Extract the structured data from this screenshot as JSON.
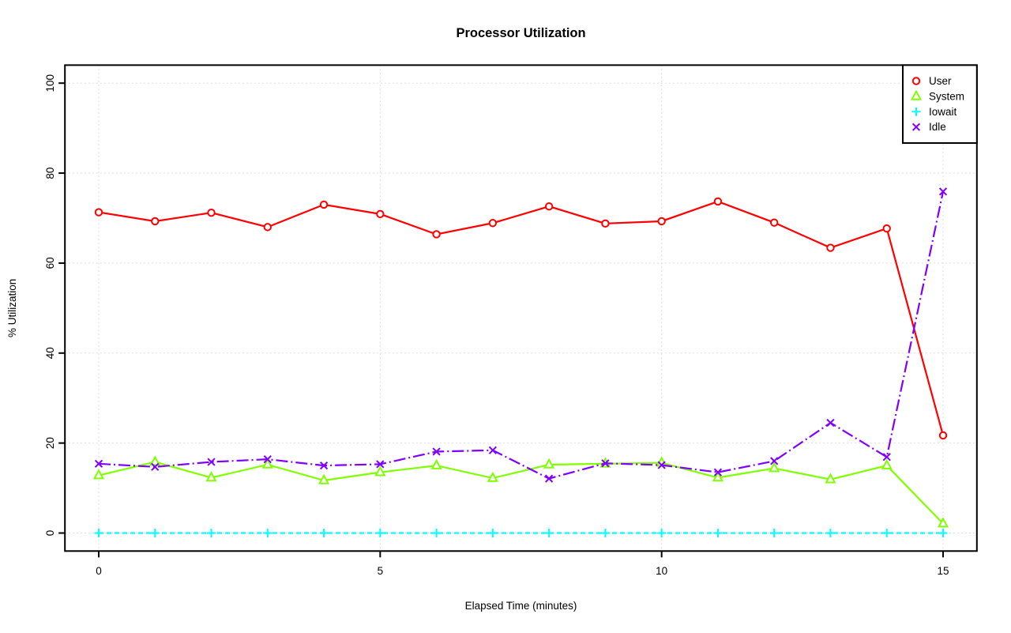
{
  "chart_data": {
    "type": "line",
    "title": "Processor Utilization",
    "xlabel": "Elapsed Time (minutes)",
    "ylabel": "% Utilization",
    "x": [
      0,
      1,
      2,
      3,
      4,
      5,
      6,
      7,
      8,
      9,
      10,
      11,
      12,
      13,
      14,
      15
    ],
    "x_ticks": [
      0,
      5,
      10,
      15
    ],
    "y_ticks": [
      0,
      20,
      40,
      60,
      80,
      100
    ],
    "xlim": [
      -0.6,
      15.6
    ],
    "ylim": [
      -4,
      104
    ],
    "grid": true,
    "grid_style": "dotted",
    "legend_position": "top-right",
    "legend_labels": [
      "User",
      "System",
      "Iowait",
      "Idle"
    ],
    "series": [
      {
        "name": "User",
        "color": "#FF0000",
        "marker": "circle",
        "line_style": "solid",
        "values": [
          71.3,
          69.3,
          71.2,
          68.0,
          73.0,
          70.9,
          66.4,
          68.9,
          72.6,
          68.8,
          69.3,
          73.7,
          69.0,
          63.4,
          67.7,
          21.7
        ]
      },
      {
        "name": "System",
        "color": "#80FF00",
        "marker": "triangle",
        "line_style": "solid",
        "values": [
          12.8,
          15.8,
          12.3,
          15.2,
          11.7,
          13.5,
          15.0,
          12.2,
          15.2,
          15.4,
          15.6,
          12.3,
          14.4,
          11.9,
          15.0,
          2.1
        ]
      },
      {
        "name": "Iowait",
        "color": "#00FFFF",
        "marker": "plus",
        "line_style": "dashed",
        "values": [
          0,
          0,
          0,
          0,
          0,
          0,
          0,
          0,
          0,
          0,
          0,
          0,
          0,
          0,
          0,
          0
        ]
      },
      {
        "name": "Idle",
        "color": "#8000FF",
        "marker": "x",
        "line_style": "dashdot",
        "values": [
          15.4,
          14.7,
          15.8,
          16.4,
          15.0,
          15.3,
          18.1,
          18.4,
          12.1,
          15.5,
          15.1,
          13.5,
          16.0,
          24.5,
          16.9,
          75.9
        ]
      }
    ]
  }
}
